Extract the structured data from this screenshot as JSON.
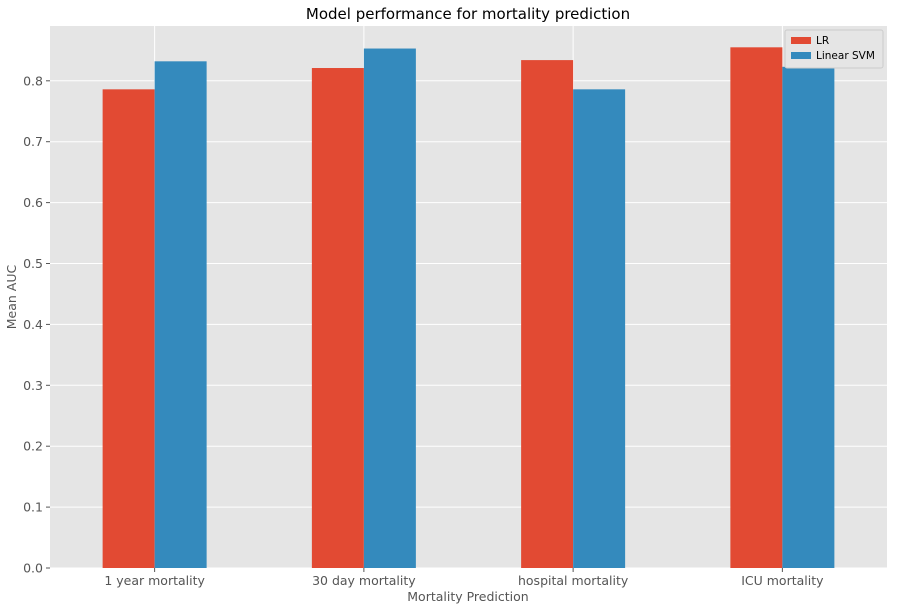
{
  "colors": {
    "plot_background": "#E5E5E5",
    "grid": "#FFFFFF",
    "series": [
      "#E24A33",
      "#348ABD"
    ],
    "legend_border": "#CCCCCC"
  },
  "chart_data": {
    "type": "bar",
    "title": "Model performance for mortality prediction",
    "xlabel": "Mortality Prediction",
    "ylabel": "Mean AUC",
    "categories": [
      "1 year mortality",
      "30 day mortality",
      "hospital mortality",
      "ICU mortality"
    ],
    "series": [
      {
        "name": "LR",
        "values": [
          0.786,
          0.821,
          0.834,
          0.855
        ]
      },
      {
        "name": "Linear SVM",
        "values": [
          0.832,
          0.853,
          0.786,
          0.823
        ]
      }
    ],
    "ylim": [
      0,
      0.89
    ],
    "yticks": [
      0.0,
      0.1,
      0.2,
      0.3,
      0.4,
      0.5,
      0.6,
      0.7,
      0.8
    ],
    "ytick_labels": [
      "0.0",
      "0.1",
      "0.2",
      "0.3",
      "0.4",
      "0.5",
      "0.6",
      "0.7",
      "0.8"
    ],
    "grid": true,
    "legend_position": "top-right"
  }
}
